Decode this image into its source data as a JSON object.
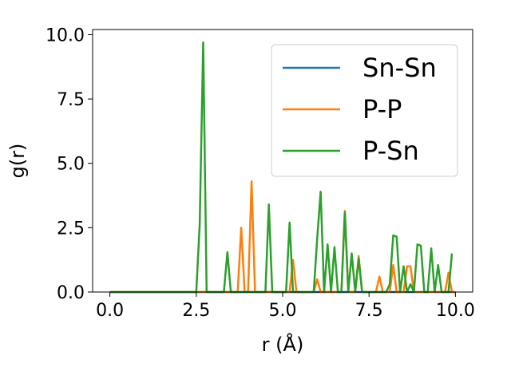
{
  "chart_data": {
    "type": "line",
    "xlabel": "r (Å)",
    "ylabel": "g(r)",
    "xlim": [
      -0.5,
      10.5
    ],
    "ylim": [
      0.0,
      10.2
    ],
    "xticks": [
      0.0,
      2.5,
      5.0,
      7.5,
      10.0
    ],
    "xtick_labels": [
      "0.0",
      "2.5",
      "5.0",
      "7.5",
      "10.0"
    ],
    "yticks": [
      0.0,
      2.5,
      5.0,
      7.5,
      10.0
    ],
    "ytick_labels": [
      "0.0",
      "2.5",
      "5.0",
      "7.5",
      "10.0"
    ],
    "grid": false,
    "legend_position": "top-right",
    "series": [
      {
        "name": "Sn-Sn",
        "color": "#1f77b4",
        "x": [
          0.0,
          2.5,
          10.0
        ],
        "y": [
          0,
          0,
          0
        ]
      },
      {
        "name": "P-P",
        "color": "#ff7f0e",
        "x": [
          0.0,
          3.7,
          3.8,
          3.9,
          4.0,
          4.1,
          4.2,
          5.2,
          5.3,
          5.4,
          5.9,
          6.0,
          6.1,
          6.7,
          6.8,
          6.9,
          7.1,
          7.2,
          7.3,
          7.7,
          7.8,
          7.9,
          8.1,
          8.2,
          8.3,
          8.5,
          8.6,
          8.7,
          8.8,
          9.7,
          9.8,
          9.9,
          10.0
        ],
        "y": [
          0,
          0,
          2.5,
          0,
          0,
          4.3,
          0,
          0,
          1.25,
          0,
          0,
          0.5,
          0,
          0,
          3.15,
          0,
          0,
          1.4,
          0,
          0,
          0.6,
          0,
          0,
          1.05,
          0,
          0,
          1.0,
          1.0,
          0,
          0,
          0.75,
          0,
          0
        ]
      },
      {
        "name": "P-Sn",
        "color": "#2ca02c",
        "x": [
          0.0,
          2.5,
          2.6,
          2.7,
          2.8,
          3.3,
          3.4,
          3.5,
          4.5,
          4.6,
          4.7,
          5.1,
          5.2,
          5.3,
          5.9,
          6.0,
          6.1,
          6.2,
          6.3,
          6.4,
          6.5,
          6.6,
          6.7,
          6.8,
          6.9,
          7.0,
          7.1,
          7.2,
          7.3,
          8.0,
          8.1,
          8.2,
          8.3,
          8.4,
          8.5,
          8.6,
          8.7,
          8.8,
          8.9,
          9.0,
          9.1,
          9.2,
          9.3,
          9.4,
          9.5,
          9.6,
          9.7,
          9.8,
          9.9
        ],
        "y": [
          0,
          0,
          2.6,
          9.7,
          0,
          0,
          1.55,
          0,
          0,
          3.4,
          0,
          0,
          2.7,
          0,
          0,
          2.1,
          3.9,
          0,
          1.85,
          0,
          1.75,
          0,
          0,
          3.1,
          0,
          1.5,
          0,
          1.3,
          0,
          0,
          0.3,
          2.2,
          2.15,
          0,
          1.0,
          0,
          0.3,
          0,
          1.85,
          1.8,
          0,
          0,
          1.7,
          0,
          1.05,
          0,
          0,
          0,
          1.5
        ]
      }
    ]
  }
}
